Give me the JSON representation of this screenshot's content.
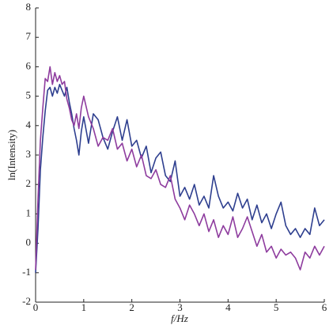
{
  "chart_data": {
    "type": "line",
    "x_label": "f/Hz",
    "y_label": "ln(Intensity)",
    "x": [
      0,
      0.05,
      0.1,
      0.15,
      0.2,
      0.25,
      0.3,
      0.35,
      0.4,
      0.45,
      0.5,
      0.55,
      0.6,
      0.65,
      0.7,
      0.75,
      0.8,
      0.85,
      0.9,
      0.95,
      1.0,
      1.1,
      1.2,
      1.3,
      1.4,
      1.5,
      1.6,
      1.7,
      1.8,
      1.9,
      2.0,
      2.1,
      2.2,
      2.3,
      2.4,
      2.5,
      2.6,
      2.7,
      2.8,
      2.9,
      3.0,
      3.1,
      3.2,
      3.3,
      3.4,
      3.5,
      3.6,
      3.7,
      3.8,
      3.9,
      4.0,
      4.1,
      4.2,
      4.3,
      4.4,
      4.5,
      4.6,
      4.7,
      4.8,
      4.9,
      5.0,
      5.1,
      5.2,
      5.3,
      5.4,
      5.5,
      5.6,
      5.7,
      5.8,
      5.9,
      6.0
    ],
    "series": [
      {
        "color": "#2e3f8f",
        "values": [
          -1.0,
          0.5,
          2.5,
          3.6,
          4.5,
          5.2,
          5.3,
          5.0,
          5.3,
          5.1,
          5.4,
          5.2,
          5.0,
          5.3,
          4.8,
          4.4,
          3.9,
          3.5,
          3.0,
          3.8,
          4.3,
          3.4,
          4.4,
          4.2,
          3.6,
          3.2,
          3.8,
          4.3,
          3.5,
          4.2,
          3.3,
          3.5,
          2.9,
          3.3,
          2.4,
          2.9,
          3.1,
          2.3,
          2.1,
          2.8,
          1.6,
          1.9,
          1.5,
          2.0,
          1.3,
          1.6,
          1.2,
          2.3,
          1.6,
          1.2,
          1.4,
          1.1,
          1.7,
          1.2,
          1.5,
          0.8,
          1.3,
          0.7,
          1.0,
          0.5,
          1.0,
          1.4,
          0.6,
          0.3,
          0.5,
          0.2,
          0.5,
          0.3,
          1.2,
          0.6,
          0.8
        ]
      },
      {
        "color": "#8e3c9e",
        "values": [
          -0.9,
          1.5,
          3.5,
          4.6,
          5.6,
          5.5,
          6.0,
          5.4,
          5.8,
          5.5,
          5.7,
          5.4,
          5.5,
          4.9,
          4.6,
          4.2,
          4.0,
          4.4,
          3.9,
          4.6,
          5.0,
          4.3,
          3.9,
          3.3,
          3.6,
          3.5,
          3.9,
          3.2,
          3.4,
          2.8,
          3.2,
          2.6,
          3.0,
          2.3,
          2.2,
          2.5,
          2.0,
          1.9,
          2.3,
          1.5,
          1.2,
          0.8,
          1.3,
          1.0,
          0.6,
          1.0,
          0.4,
          0.8,
          0.2,
          0.6,
          0.3,
          0.9,
          0.2,
          0.5,
          0.9,
          0.4,
          -0.1,
          0.3,
          -0.3,
          -0.1,
          -0.5,
          -0.2,
          -0.4,
          -0.3,
          -0.5,
          -0.9,
          -0.3,
          -0.5,
          -0.1,
          -0.4,
          -0.1
        ]
      }
    ],
    "xlim": [
      0,
      6
    ],
    "xticks": [
      0,
      1,
      2,
      3,
      4,
      5,
      6
    ],
    "ylim": [
      -2,
      8
    ],
    "yticks": [
      -2,
      -1,
      0,
      1,
      2,
      3,
      4,
      5,
      6,
      7,
      8
    ]
  }
}
